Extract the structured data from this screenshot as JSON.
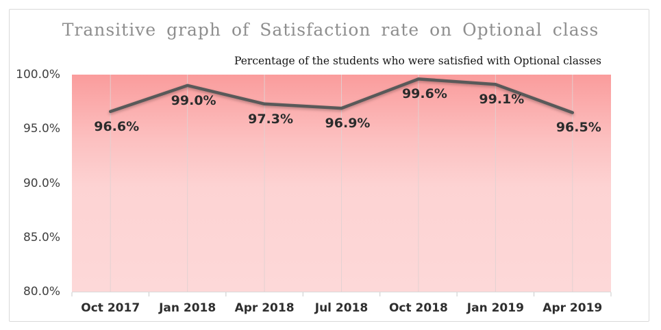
{
  "chart_data": {
    "type": "line",
    "title": "Transitive graph of Satisfaction rate on Optional class",
    "subtitle": "Percentage of the students who were satisfied with Optional classes",
    "categories": [
      "Oct 2017",
      "Jan 2018",
      "Apr 2018",
      "Jul 2018",
      "Oct 2018",
      "Jan 2019",
      "Apr 2019"
    ],
    "series": [
      {
        "name": "Satisfaction rate",
        "values": [
          96.6,
          99.0,
          97.3,
          96.9,
          99.6,
          99.1,
          96.5
        ]
      }
    ],
    "data_labels": [
      "96.6%",
      "99.0%",
      "97.3%",
      "96.9%",
      "99.6%",
      "99.1%",
      "96.5%"
    ],
    "y_ticks": [
      {
        "label": "100.0%",
        "value": 100
      },
      {
        "label": "95.0%",
        "value": 95
      },
      {
        "label": "90.0%",
        "value": 90
      },
      {
        "label": "85.0%",
        "value": 85
      },
      {
        "label": "80.0%",
        "value": 80
      }
    ],
    "ylim": [
      80,
      100
    ],
    "xlabel": "",
    "ylabel": "",
    "legend": "none",
    "grid": "vertical-category-gridlines",
    "colors": {
      "line": "#595959",
      "plot_gradient_stops": [
        "#fa9c9c",
        "#fcc0c0",
        "#fdd3d3",
        "#fdd8d8"
      ],
      "plot_gradient_offsets": [
        0,
        0.3,
        0.52,
        1
      ],
      "gridline": "#e0d2d2",
      "axis_line": "#d9d9d9",
      "tick": "#c8c8c8",
      "title": "#8e8e8e",
      "subtitle": "#141414",
      "data_label": "#2b2b2b",
      "axis_label": "#3f3f3f",
      "frame_border": "#d9d9d9"
    }
  }
}
